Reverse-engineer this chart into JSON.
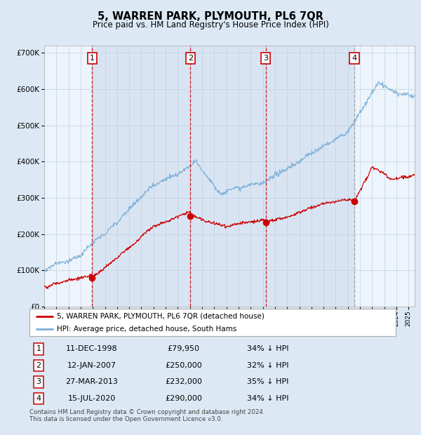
{
  "title": "5, WARREN PARK, PLYMOUTH, PL6 7QR",
  "subtitle": "Price paid vs. HM Land Registry's House Price Index (HPI)",
  "legend_red": "5, WARREN PARK, PLYMOUTH, PL6 7QR (detached house)",
  "legend_blue": "HPI: Average price, detached house, South Hams",
  "footer1": "Contains HM Land Registry data © Crown copyright and database right 2024.",
  "footer2": "This data is licensed under the Open Government Licence v3.0.",
  "transactions": [
    {
      "num": 1,
      "date": "11-DEC-1998",
      "price": "£79,950",
      "pct": "34% ↓ HPI",
      "year": 1998.94
    },
    {
      "num": 2,
      "date": "12-JAN-2007",
      "price": "£250,000",
      "pct": "32% ↓ HPI",
      "year": 2007.04
    },
    {
      "num": 3,
      "date": "27-MAR-2013",
      "price": "£232,000",
      "pct": "35% ↓ HPI",
      "year": 2013.24
    },
    {
      "num": 4,
      "date": "15-JUL-2020",
      "price": "£290,000",
      "pct": "34% ↓ HPI",
      "year": 2020.54
    }
  ],
  "transaction_values": [
    79950,
    250000,
    232000,
    290000
  ],
  "bg_color": "#dce9f5",
  "plot_bg": "#eef4fc",
  "red_color": "#cc0000",
  "blue_color": "#7aadd4",
  "ylim": [
    0,
    720000
  ],
  "xlim_start": 1995.0,
  "xlim_end": 2025.5
}
